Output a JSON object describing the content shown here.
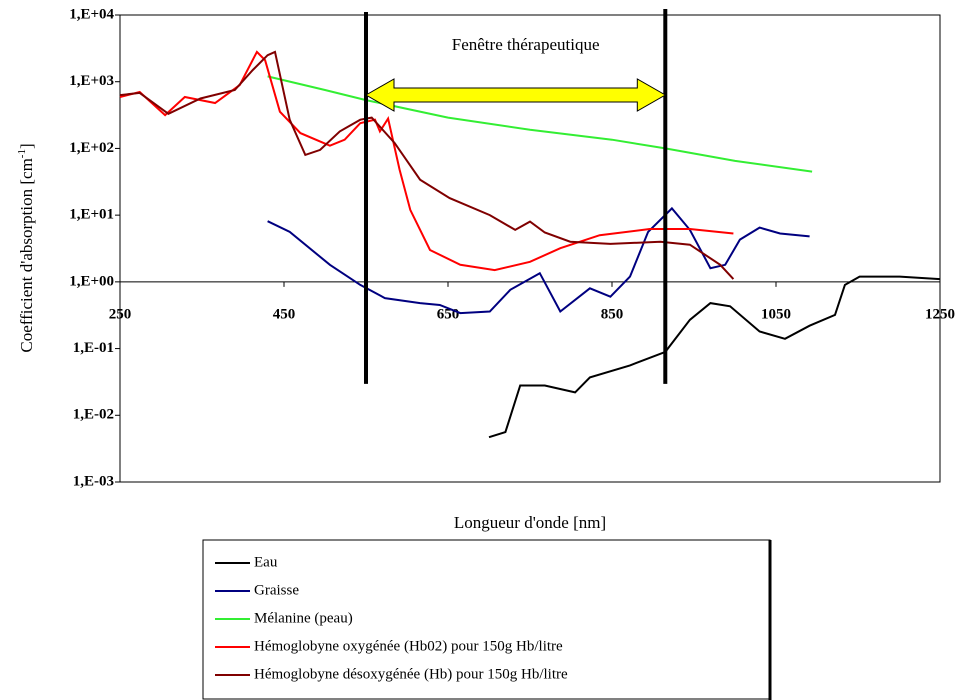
{
  "chart_data": {
    "type": "line",
    "xlabel": "Longueur d'onde [nm]",
    "ylabel": {
      "text": "Coefficient d'absorption [cm",
      "superscript": "-1",
      "suffix": "]"
    },
    "xlim": [
      250,
      1250
    ],
    "xticks": [
      250,
      450,
      650,
      850,
      1050,
      1250
    ],
    "ylim": [
      0.001,
      10000
    ],
    "yscale": "log",
    "yticks": [
      {
        "value": 10000,
        "label": "1,E+04"
      },
      {
        "value": 1000,
        "label": "1,E+03"
      },
      {
        "value": 100,
        "label": "1,E+02"
      },
      {
        "value": 10,
        "label": "1,E+01"
      },
      {
        "value": 1,
        "label": "1,E+00"
      },
      {
        "value": 0.1,
        "label": "1,E-01"
      },
      {
        "value": 0.01,
        "label": "1,E-02"
      },
      {
        "value": 0.001,
        "label": "1,E-03"
      }
    ],
    "xaxis_at": 1,
    "grid": false,
    "legend": "bottom",
    "therapeutic_window": {
      "label": "Fenêtre thérapeutique",
      "x": [
        550,
        915
      ],
      "color": "#ffff00"
    },
    "series": [
      {
        "name": "Eau",
        "color": "#000000",
        "x": [
          700,
          720,
          738,
          768,
          805,
          823,
          872,
          915,
          945,
          970,
          994,
          1030,
          1061,
          1091,
          1122,
          1134,
          1152,
          1201,
          1250
        ],
        "values": [
          0.0047,
          0.0056,
          0.028,
          0.028,
          0.022,
          0.037,
          0.056,
          0.089,
          0.27,
          0.48,
          0.43,
          0.18,
          0.14,
          0.22,
          0.32,
          0.9,
          1.2,
          1.2,
          1.1
        ]
      },
      {
        "name": "Graisse",
        "color": "#000080",
        "x": [
          430,
          457,
          506,
          543,
          573,
          616,
          640,
          665,
          701,
          726,
          762,
          787,
          823,
          848,
          872,
          894,
          923,
          945,
          970,
          988,
          1006,
          1030,
          1055,
          1091
        ],
        "values": [
          8.1,
          5.6,
          1.8,
          0.9,
          0.57,
          0.48,
          0.45,
          0.34,
          0.36,
          0.76,
          1.35,
          0.36,
          0.8,
          0.6,
          1.2,
          5.6,
          12.6,
          6,
          1.6,
          1.8,
          4.3,
          6.5,
          5.3,
          4.8
        ]
      },
      {
        "name": "Mélanine (peau)",
        "color": "#33ee33",
        "x": [
          430,
          500,
          550,
          650,
          750,
          850,
          915,
          1000,
          1094
        ],
        "values": [
          1200,
          750,
          530,
          290,
          190,
          135,
          100,
          65,
          45
        ]
      },
      {
        "name": "Hémoglobyne oxygénée (Hb02) pour 150g Hb/litre",
        "color": "#ff0000",
        "x": [
          250,
          274,
          305,
          329,
          366,
          396,
          417,
          427,
          445,
          470,
          506,
          524,
          543,
          561,
          567,
          577,
          591,
          604,
          628,
          665,
          707,
          750,
          787,
          835,
          896,
          945,
          998
        ],
        "values": [
          590,
          700,
          316,
          590,
          480,
          890,
          2800,
          2100,
          355,
          170,
          110,
          135,
          240,
          270,
          180,
          280,
          48,
          12,
          3,
          1.8,
          1.5,
          2,
          3.2,
          5,
          6.2,
          6.2,
          5.3
        ]
      },
      {
        "name": "Hémoglobyne désoxygénée (Hb) pour 150g Hb/litre",
        "color": "#800000",
        "x": [
          250,
          274,
          309,
          348,
          390,
          412,
          430,
          439,
          457,
          476,
          494,
          518,
          543,
          557,
          585,
          616,
          652,
          701,
          732,
          750,
          768,
          799,
          848,
          909,
          945,
          982,
          998
        ],
        "values": [
          630,
          680,
          330,
          560,
          750,
          1500,
          2500,
          2800,
          270,
          80,
          95,
          180,
          270,
          290,
          120,
          34,
          18,
          10,
          6,
          8,
          5.5,
          4,
          3.7,
          4,
          3.6,
          1.8,
          1.1
        ]
      }
    ]
  }
}
